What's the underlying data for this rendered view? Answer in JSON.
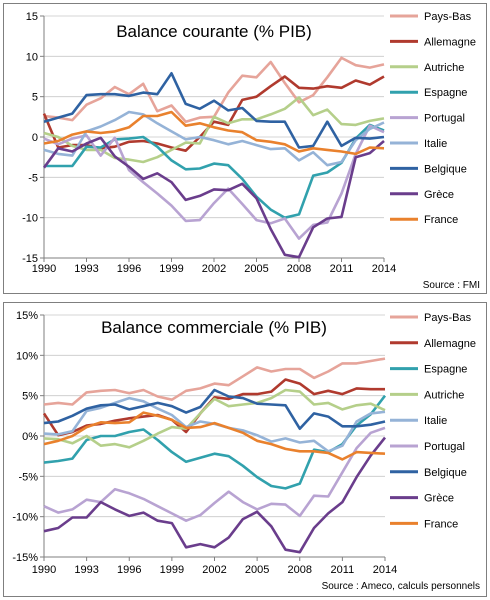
{
  "chart_data": [
    {
      "type": "line",
      "title": "Balance courante (% PIB)",
      "source": "Source : FMI",
      "x": [
        1990,
        1991,
        1992,
        1993,
        1994,
        1995,
        1996,
        1997,
        1998,
        1999,
        2000,
        2001,
        2002,
        2003,
        2004,
        2005,
        2006,
        2007,
        2008,
        2009,
        2010,
        2011,
        2012,
        2013,
        2014
      ],
      "xticks": [
        1990,
        1993,
        1996,
        1999,
        2002,
        2005,
        2008,
        2011,
        2014
      ],
      "ylim": [
        -15,
        15
      ],
      "yticks": [
        -15,
        -10,
        -5,
        0,
        5,
        10,
        15
      ],
      "ytick_labels": [
        "-15",
        "-10",
        "-5",
        "0",
        "5",
        "10",
        "15"
      ],
      "legend_position": "right",
      "series": [
        {
          "name": "Pays-Bas",
          "color": "#e6a49a",
          "values": [
            2.6,
            2.4,
            2.1,
            4.0,
            4.8,
            6.2,
            5.3,
            6.6,
            3.2,
            3.9,
            1.9,
            2.4,
            2.5,
            5.5,
            7.6,
            7.4,
            9.3,
            6.7,
            4.3,
            5.2,
            7.4,
            9.8,
            8.9,
            8.6,
            9.0
          ]
        },
        {
          "name": "Allemagne",
          "color": "#b03a2e",
          "values": [
            2.9,
            -1.3,
            -1.0,
            -1.0,
            -1.4,
            -1.2,
            -0.6,
            -0.5,
            -0.8,
            -1.3,
            -1.7,
            0.0,
            1.9,
            1.5,
            4.6,
            5.0,
            6.3,
            7.5,
            6.1,
            6.0,
            6.3,
            6.1,
            7.0,
            6.5,
            7.5
          ]
        },
        {
          "name": "Autriche",
          "color": "#b5cf8a",
          "values": [
            0.5,
            0.0,
            -1.1,
            -1.6,
            -1.6,
            -2.6,
            -2.8,
            -3.1,
            -2.5,
            -1.6,
            -0.7,
            -0.8,
            2.5,
            1.7,
            2.2,
            2.2,
            2.8,
            3.5,
            4.9,
            2.7,
            3.4,
            1.6,
            1.5,
            2.0,
            2.3
          ]
        },
        {
          "name": "Espagne",
          "color": "#31a1ad",
          "values": [
            -3.6,
            -3.6,
            -3.6,
            -1.2,
            -1.3,
            -0.3,
            -0.2,
            0.0,
            -1.2,
            -2.9,
            -4.0,
            -3.9,
            -3.3,
            -3.5,
            -5.2,
            -7.4,
            -9.0,
            -10.0,
            -9.6,
            -4.8,
            -4.4,
            -3.2,
            -0.2,
            1.5,
            0.8
          ]
        },
        {
          "name": "Portugal",
          "color": "#b8a3d2",
          "values": [
            -0.2,
            -0.9,
            -0.2,
            0.2,
            -2.3,
            -0.1,
            -4.1,
            -5.6,
            -7.0,
            -8.5,
            -10.4,
            -10.3,
            -8.2,
            -6.4,
            -8.3,
            -10.3,
            -10.7,
            -10.1,
            -12.6,
            -10.9,
            -10.6,
            -7.0,
            -2.1,
            1.4,
            0.6
          ]
        },
        {
          "name": "Italie",
          "color": "#95b3d7",
          "values": [
            -1.6,
            -2.1,
            -2.3,
            0.7,
            1.3,
            2.1,
            3.1,
            2.8,
            1.7,
            0.7,
            -0.3,
            0.0,
            -0.4,
            -0.9,
            -0.5,
            -1.0,
            -1.5,
            -1.4,
            -2.9,
            -1.9,
            -3.5,
            -3.1,
            -0.4,
            1.0,
            1.8
          ]
        },
        {
          "name": "Belgique",
          "color": "#2f62a2",
          "values": [
            1.9,
            2.4,
            2.9,
            5.2,
            5.3,
            5.3,
            5.1,
            5.5,
            5.3,
            7.9,
            4.1,
            3.5,
            4.5,
            3.3,
            3.6,
            2.0,
            1.9,
            1.9,
            -1.3,
            -1.1,
            1.9,
            -1.1,
            -0.1,
            -0.2,
            0.0
          ]
        },
        {
          "name": "Grèce",
          "color": "#6a3d8c",
          "values": [
            -3.8,
            -1.4,
            -1.8,
            -0.8,
            -0.1,
            -2.4,
            -3.7,
            -5.2,
            -4.5,
            -5.6,
            -7.8,
            -7.3,
            -6.5,
            -6.6,
            -5.8,
            -7.6,
            -11.4,
            -14.6,
            -14.9,
            -11.2,
            -10.1,
            -9.9,
            -2.5,
            -2.0,
            -0.5
          ]
        },
        {
          "name": "France",
          "color": "#e9812d",
          "values": [
            -0.8,
            -0.5,
            0.3,
            0.7,
            0.5,
            0.7,
            1.2,
            2.6,
            2.6,
            3.1,
            1.4,
            1.7,
            1.2,
            0.8,
            0.6,
            -0.4,
            -0.6,
            -0.9,
            -1.8,
            -1.4,
            -1.6,
            -1.8,
            -2.1,
            -1.3,
            -1.4
          ]
        }
      ]
    },
    {
      "type": "line",
      "title": "Balance commerciale (% PIB)",
      "source": "Source : Ameco, calculs personnels",
      "x": [
        1990,
        1991,
        1992,
        1993,
        1994,
        1995,
        1996,
        1997,
        1998,
        1999,
        2000,
        2001,
        2002,
        2003,
        2004,
        2005,
        2006,
        2007,
        2008,
        2009,
        2010,
        2011,
        2012,
        2013,
        2014
      ],
      "xticks": [
        1990,
        1993,
        1996,
        1999,
        2002,
        2005,
        2008,
        2011,
        2014
      ],
      "ylim": [
        -15,
        15
      ],
      "yticks": [
        -15,
        -10,
        -5,
        0,
        5,
        10,
        15
      ],
      "ytick_labels": [
        "-15%",
        "-10%",
        "-5%",
        "0%",
        "5%",
        "10%",
        "15%"
      ],
      "legend_position": "right",
      "series": [
        {
          "name": "Pays-Bas",
          "color": "#e6a49a",
          "values": [
            3.9,
            4.1,
            3.9,
            5.4,
            5.6,
            5.7,
            5.3,
            5.7,
            4.9,
            4.5,
            5.6,
            5.9,
            6.5,
            6.3,
            7.4,
            8.5,
            8.0,
            8.3,
            8.3,
            7.2,
            8.0,
            9.0,
            9.0,
            9.3,
            9.6
          ]
        },
        {
          "name": "Allemagne",
          "color": "#b03a2e",
          "values": [
            2.8,
            0.1,
            0.5,
            1.3,
            1.5,
            1.9,
            2.2,
            2.4,
            2.6,
            2.0,
            0.5,
            2.8,
            4.8,
            4.6,
            5.2,
            5.2,
            5.5,
            7.0,
            6.5,
            5.2,
            5.6,
            5.2,
            5.9,
            5.8,
            5.8
          ]
        },
        {
          "name": "Espagne",
          "color": "#31a1ad",
          "values": [
            -3.3,
            -3.1,
            -2.8,
            -0.5,
            0.0,
            0.0,
            0.5,
            0.8,
            -0.5,
            -2.0,
            -3.2,
            -2.7,
            -2.2,
            -2.5,
            -3.7,
            -5.1,
            -6.2,
            -6.5,
            -5.9,
            -1.7,
            -2.0,
            -1.0,
            1.3,
            2.7,
            5.0
          ]
        },
        {
          "name": "Autriche",
          "color": "#b5cf8a",
          "values": [
            -0.3,
            -0.4,
            -0.9,
            0.0,
            -1.2,
            -1.0,
            -1.4,
            -0.6,
            0.3,
            1.1,
            0.9,
            2.8,
            4.6,
            3.7,
            3.9,
            4.1,
            4.7,
            5.7,
            5.5,
            3.9,
            4.1,
            3.3,
            3.8,
            4.0,
            3.2
          ]
        },
        {
          "name": "Italie",
          "color": "#95b3d7",
          "values": [
            0.3,
            0.2,
            0.6,
            3.1,
            3.5,
            4.1,
            4.7,
            4.3,
            3.4,
            2.6,
            1.1,
            1.8,
            1.5,
            1.0,
            0.7,
            0.1,
            -0.7,
            -0.3,
            -0.8,
            -0.6,
            -1.9,
            -1.2,
            1.8,
            2.8,
            3.0
          ]
        },
        {
          "name": "Portugal",
          "color": "#b8a3d2",
          "values": [
            -8.7,
            -9.5,
            -9.1,
            -7.9,
            -8.2,
            -6.6,
            -7.1,
            -7.8,
            -8.7,
            -9.6,
            -10.5,
            -9.8,
            -8.3,
            -6.9,
            -8.2,
            -9.1,
            -8.4,
            -8.5,
            -9.9,
            -7.4,
            -7.5,
            -4.5,
            -1.5,
            0.4,
            1.0
          ]
        },
        {
          "name": "Belgique",
          "color": "#2f62a2",
          "values": [
            1.6,
            1.8,
            2.5,
            3.4,
            3.8,
            3.9,
            3.3,
            3.7,
            4.1,
            3.7,
            2.9,
            3.6,
            5.7,
            4.9,
            4.7,
            4.0,
            3.9,
            3.8,
            0.9,
            2.8,
            2.4,
            1.2,
            1.2,
            1.4,
            1.8
          ]
        },
        {
          "name": "Grèce",
          "color": "#6a3d8c",
          "values": [
            -11.8,
            -11.4,
            -10.1,
            -10.1,
            -8.2,
            -9.1,
            -9.9,
            -9.5,
            -10.5,
            -10.8,
            -13.8,
            -13.4,
            -13.8,
            -12.6,
            -10.3,
            -9.4,
            -11.2,
            -14.1,
            -14.4,
            -11.4,
            -9.6,
            -8.2,
            -5.1,
            -2.4,
            -0.2
          ]
        },
        {
          "name": "France",
          "color": "#e9812d",
          "values": [
            -1.0,
            -0.6,
            0.0,
            1.1,
            1.7,
            1.6,
            1.7,
            2.9,
            2.5,
            2.0,
            1.0,
            1.1,
            1.6,
            1.0,
            0.4,
            -0.6,
            -1.0,
            -1.6,
            -1.9,
            -1.9,
            -2.1,
            -2.9,
            -2.0,
            -2.1,
            -2.2
          ]
        }
      ]
    }
  ]
}
